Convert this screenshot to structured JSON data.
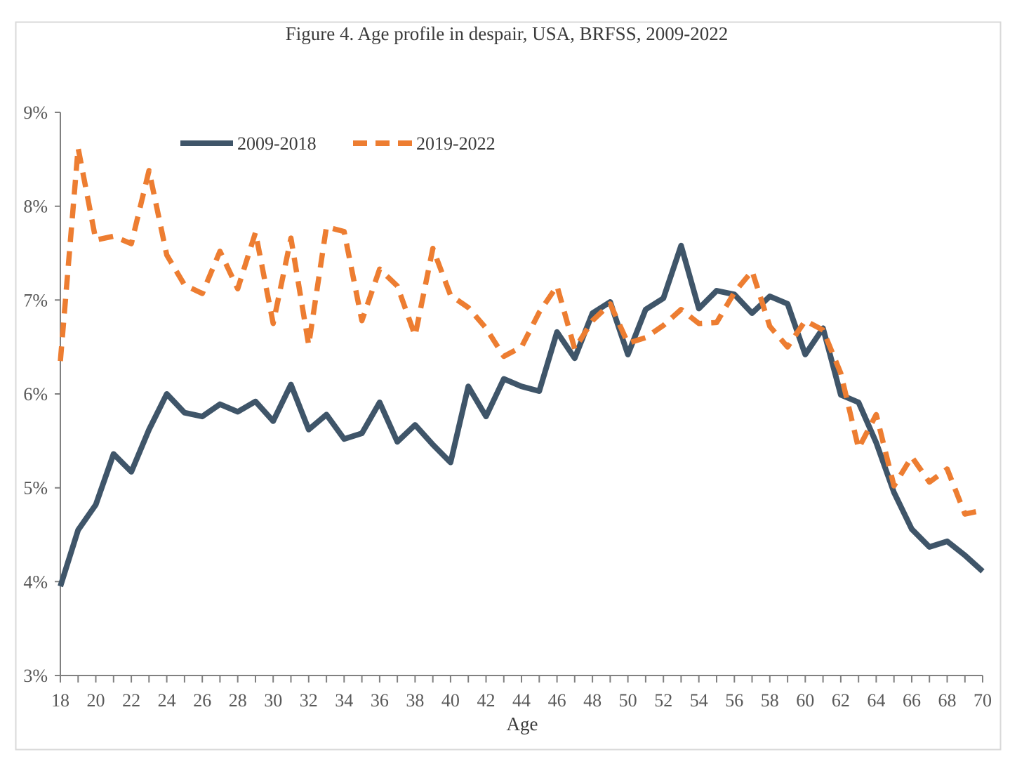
{
  "figure": {
    "title": "Figure 4. Age profile in despair, USA, BRFSS, 2009-2022",
    "x_axis_label": "Age"
  },
  "colors": {
    "series_2009_2018": "#3F5569",
    "series_2019_2022": "#ED7D31",
    "axis_line": "#808080",
    "tick_text": "#595959",
    "title_text": "#3B3B3B",
    "frame_border": "#D9D9D9",
    "background": "#FFFFFF"
  },
  "chart_data": {
    "type": "line",
    "title": "Figure 4. Age profile in despair, USA, BRFSS, 2009-2022",
    "xlabel": "Age",
    "ylabel": "",
    "x_range": [
      18,
      70
    ],
    "y_range_percent": [
      3,
      9
    ],
    "y_tick_labels": [
      "3%",
      "4%",
      "5%",
      "6%",
      "7%",
      "8%",
      "9%"
    ],
    "x_tick_labels": [
      18,
      20,
      22,
      24,
      26,
      28,
      30,
      32,
      34,
      36,
      38,
      40,
      42,
      44,
      46,
      48,
      50,
      52,
      54,
      56,
      58,
      60,
      62,
      64,
      66,
      68,
      70
    ],
    "x_minor_tick_step": 1,
    "grid": "off",
    "legend_position": "top-left-inside",
    "ages": [
      18,
      19,
      20,
      21,
      22,
      23,
      24,
      25,
      26,
      27,
      28,
      29,
      30,
      31,
      32,
      33,
      34,
      35,
      36,
      37,
      38,
      39,
      40,
      41,
      42,
      43,
      44,
      45,
      46,
      47,
      48,
      49,
      50,
      51,
      52,
      53,
      54,
      55,
      56,
      57,
      58,
      59,
      60,
      61,
      62,
      63,
      64,
      65,
      66,
      67,
      68,
      69,
      70
    ],
    "series": [
      {
        "name": "2009-2018",
        "style": "solid",
        "color": "#3F5569",
        "unit": "%",
        "values": [
          3.95,
          4.55,
          4.82,
          5.36,
          5.17,
          5.62,
          6.0,
          5.8,
          5.76,
          5.89,
          5.81,
          5.92,
          5.71,
          6.1,
          5.62,
          5.78,
          5.52,
          5.58,
          5.91,
          5.49,
          5.67,
          5.46,
          5.27,
          6.08,
          5.76,
          6.16,
          6.08,
          6.03,
          6.66,
          6.38,
          6.86,
          6.98,
          6.42,
          6.9,
          7.02,
          7.58,
          6.91,
          7.1,
          7.06,
          6.86,
          7.04,
          6.96,
          6.42,
          6.7,
          5.99,
          5.91,
          5.48,
          4.95,
          4.56,
          4.37,
          4.43,
          4.28,
          4.11
        ]
      },
      {
        "name": "2019-2022",
        "style": "dashed",
        "color": "#ED7D31",
        "unit": "%",
        "values": [
          6.35,
          8.62,
          7.64,
          7.68,
          7.6,
          8.38,
          7.48,
          7.16,
          7.07,
          7.52,
          7.12,
          7.72,
          6.75,
          7.66,
          6.52,
          7.78,
          7.73,
          6.78,
          7.33,
          7.15,
          6.62,
          7.55,
          7.05,
          6.92,
          6.7,
          6.4,
          6.5,
          6.87,
          7.15,
          6.48,
          6.78,
          6.96,
          6.54,
          6.6,
          6.73,
          6.9,
          6.75,
          6.76,
          7.08,
          7.31,
          6.72,
          6.5,
          6.78,
          6.68,
          6.22,
          5.42,
          5.78,
          5.02,
          5.33,
          5.06,
          5.2,
          4.72,
          4.76
        ]
      }
    ]
  }
}
